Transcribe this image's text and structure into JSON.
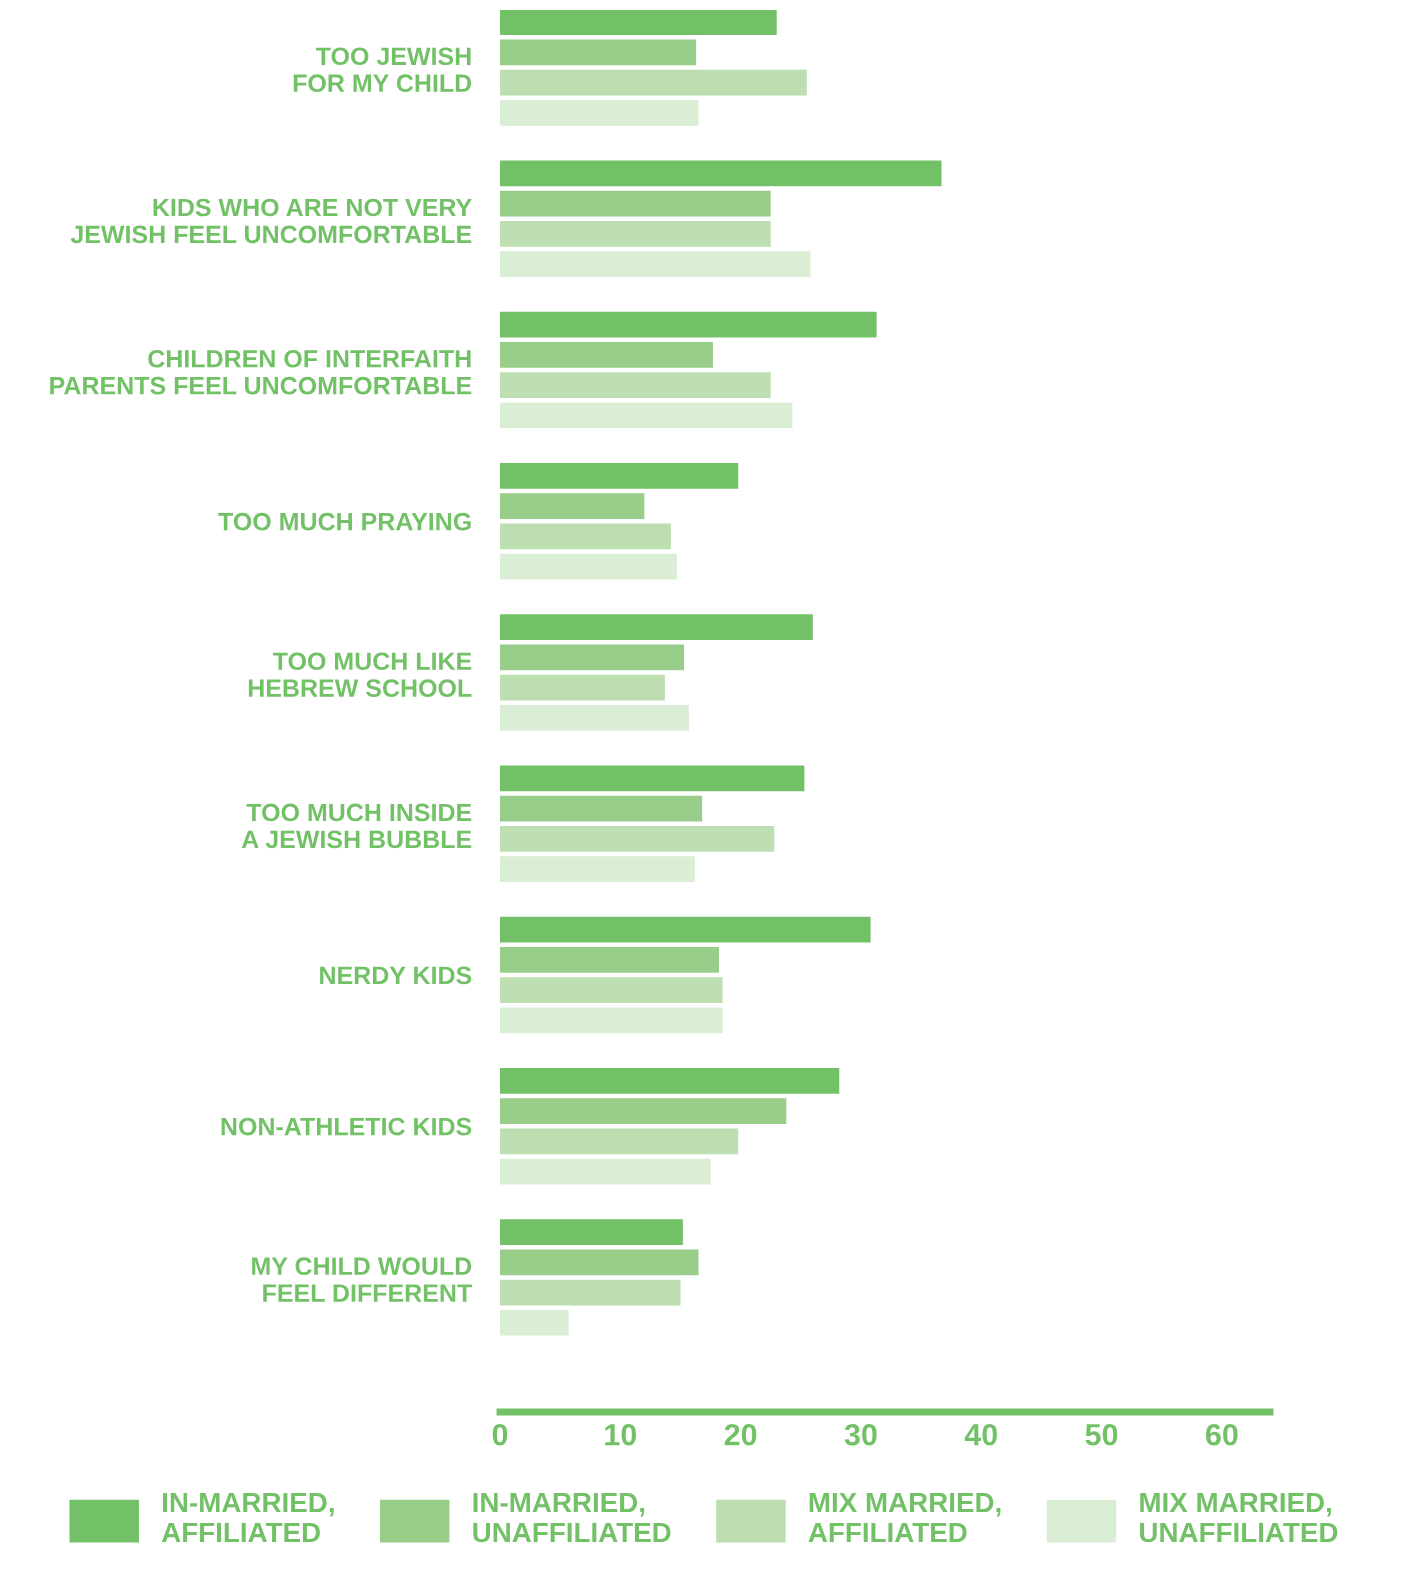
{
  "chart_data": {
    "type": "bar",
    "orientation": "horizontal",
    "categories": [
      "TOO JEWISH\nFOR MY CHILD",
      "KIDS WHO ARE NOT VERY\nJEWISH FEEL UNCOMFORTABLE",
      "CHILDREN OF INTERFAITH\nPARENTS FEEL UNCOMFORTABLE",
      "TOO MUCH PRAYING",
      "TOO MUCH LIKE\nHEBREW SCHOOL",
      "TOO MUCH INSIDE\nA JEWISH BUBBLE",
      "NERDY KIDS",
      "NON-ATHLETIC KIDS",
      "MY CHILD WOULD\nFEEL DIFFERENT"
    ],
    "series": [
      {
        "name": "IN-MARRIED,\nAFFILIATED",
        "color": "#72c167",
        "values": [
          23.0,
          36.7,
          31.3,
          19.8,
          26.0,
          25.3,
          30.8,
          28.2,
          15.2
        ]
      },
      {
        "name": "IN-MARRIED,\nUNAFFILIATED",
        "color": "#98ce8a",
        "values": [
          16.3,
          22.5,
          17.7,
          12.0,
          15.3,
          16.8,
          18.2,
          23.8,
          16.5
        ]
      },
      {
        "name": "MIX MARRIED,\nAFFILIATED",
        "color": "#bcdeb0",
        "values": [
          25.5,
          22.5,
          22.5,
          14.2,
          13.7,
          22.8,
          18.5,
          19.8,
          15.0
        ]
      },
      {
        "name": "MIX MARRIED,\nUNAFFILIATED",
        "color": "#daeed6",
        "values": [
          16.5,
          25.8,
          24.3,
          14.7,
          15.7,
          16.2,
          18.5,
          17.5,
          5.7
        ]
      }
    ],
    "xlim": [
      0,
      64
    ],
    "xticks": [
      0,
      10,
      20,
      30,
      40,
      50,
      60
    ],
    "grid": false,
    "legend": "bottom"
  }
}
